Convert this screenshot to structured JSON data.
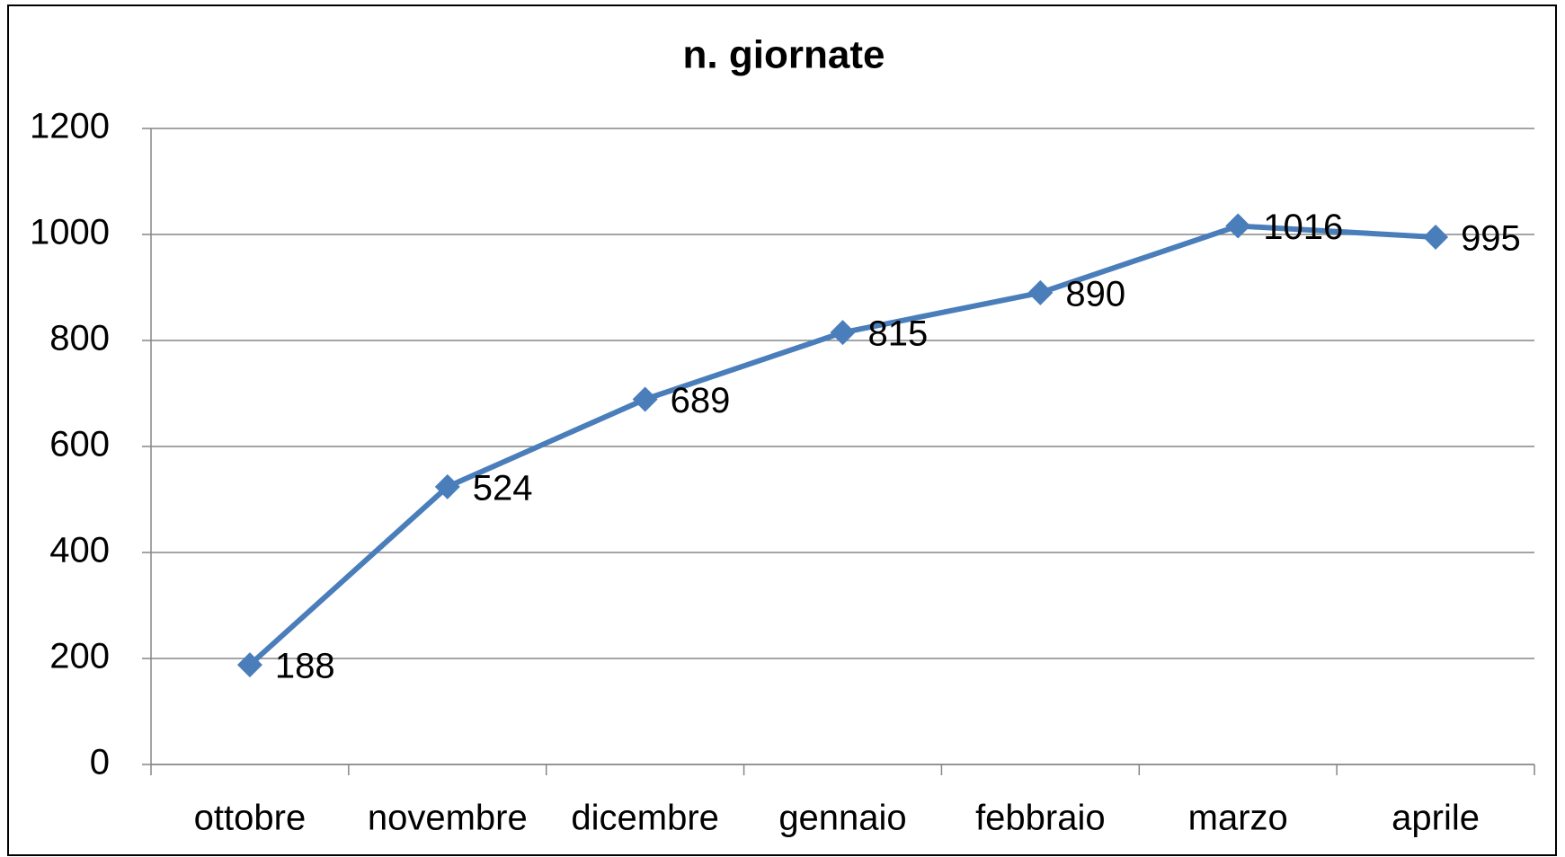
{
  "chart_data": {
    "type": "line",
    "title": "n. giornate",
    "categories": [
      "ottobre",
      "novembre",
      "dicembre",
      "gennaio",
      "febbraio",
      "marzo",
      "aprile"
    ],
    "series": [
      {
        "name": "n. giornate",
        "color": "#4a7ebb",
        "values": [
          188,
          524,
          689,
          815,
          890,
          1016,
          995
        ]
      }
    ],
    "ylim": [
      0,
      1200
    ],
    "yticks": [
      0,
      200,
      400,
      600,
      800,
      1000,
      1200
    ],
    "grid": true
  }
}
